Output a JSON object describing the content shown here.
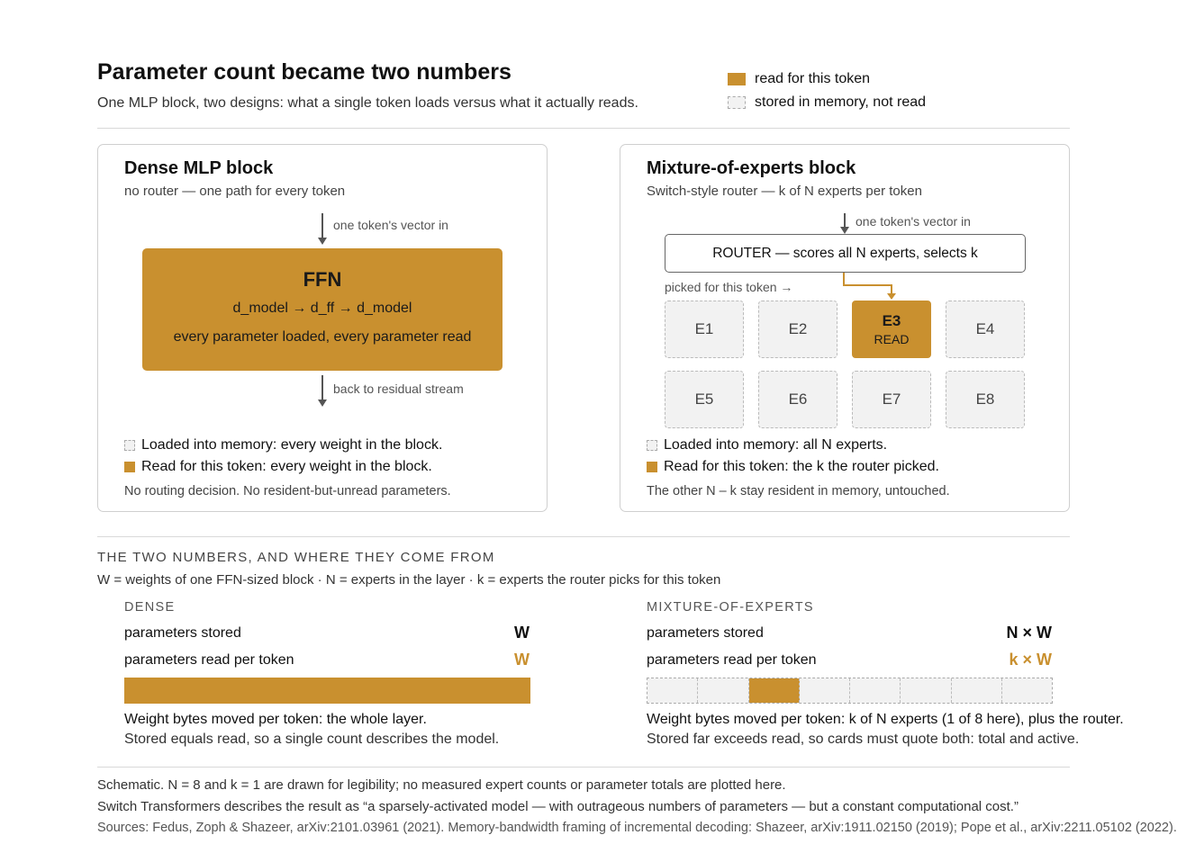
{
  "header": {
    "title": "Parameter count became two numbers",
    "subtitle": "One MLP block, two designs: what a single token loads versus what it actually reads."
  },
  "legend": {
    "read": "read for this token",
    "stored": "stored in memory, not read"
  },
  "colors": {
    "read": "#c9902f",
    "stored": "#f2f2f2",
    "border": "#cfcfcf"
  },
  "dense": {
    "title": "Dense MLP block",
    "subtitle": "no router — one path for every token",
    "in_label": "one token's vector in",
    "ffn_title": "FFN",
    "ffn_formula": "d_model → d_ff → d_model",
    "ffn_note": "every parameter loaded, every parameter read",
    "out_label": "back to residual stream",
    "loaded_note": "Loaded into memory: every weight in the block.",
    "read_note": "Read for this token: every weight in the block.",
    "footnote": "No routing decision. No resident-but-unread parameters."
  },
  "moe": {
    "title": "Mixture-of-experts block",
    "subtitle": "Switch-style router — k of N experts per token",
    "in_label": "one token's vector in",
    "router_label": "ROUTER — scores all N experts, selects k",
    "picked_label": "picked for this token →",
    "experts": [
      {
        "name": "E1",
        "active": false
      },
      {
        "name": "E2",
        "active": false
      },
      {
        "name": "E3",
        "active": true,
        "tag": "READ"
      },
      {
        "name": "E4",
        "active": false
      },
      {
        "name": "E5",
        "active": false
      },
      {
        "name": "E6",
        "active": false
      },
      {
        "name": "E7",
        "active": false
      },
      {
        "name": "E8",
        "active": false
      }
    ],
    "loaded_note": "Loaded into memory: all N experts.",
    "read_note": "Read for this token: the k the router picked.",
    "footnote": "The other N – k stay resident in memory, untouched."
  },
  "numbers": {
    "heading": "THE TWO NUMBERS, AND WHERE THEY COME FROM",
    "definitions": "W = weights of one FFN-sized block · N = experts in the layer · k = experts the router picks for this token",
    "dense": {
      "heading": "DENSE",
      "stored_label": "parameters stored",
      "stored_value": "W",
      "read_label": "parameters read per token",
      "read_value": "W",
      "read_fraction": 1,
      "bytes_line1": "Weight bytes moved per token: the whole layer.",
      "bytes_line2": "Stored equals read, so a single count describes the model."
    },
    "moe": {
      "heading": "MIXTURE-OF-EXPERTS",
      "stored_label": "parameters stored",
      "stored_value": "N × W",
      "read_label": "parameters read per token",
      "read_value": "k × W",
      "bar": {
        "n": 8,
        "active_index": 2
      },
      "bytes_line1": "Weight bytes moved per token: k of N experts (1 of 8 here), plus the router.",
      "bytes_line2": "Stored far exceeds read, so cards must quote both: total and active."
    }
  },
  "footer": {
    "schematic": "Schematic. N = 8 and k = 1 are drawn for legibility; no measured expert counts or parameter totals are plotted here.",
    "quote": "Switch Transformers describes the result as “a sparsely-activated model — with outrageous numbers of parameters — but a constant computational cost.”",
    "sources": "Sources: Fedus, Zoph & Shazeer, arXiv:2101.03961 (2021). Memory-bandwidth framing of incremental decoding: Shazeer, arXiv:1911.02150 (2019); Pope et al., arXiv:2211.05102 (2022)."
  }
}
